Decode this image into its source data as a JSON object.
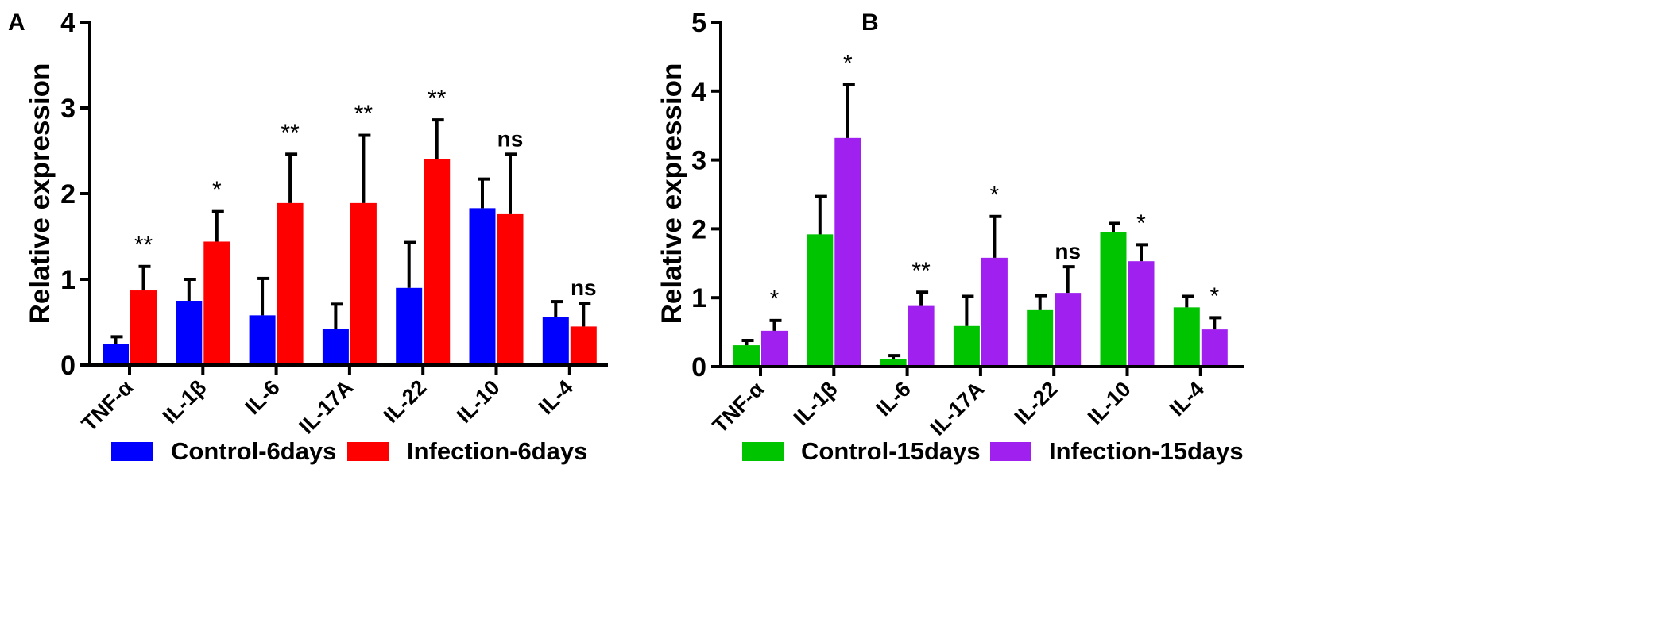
{
  "chart_data": [
    {
      "panel": "A",
      "type": "bar",
      "ylabel": "Relative expression",
      "ylim": [
        0,
        4
      ],
      "yticks": [
        "0",
        "1",
        "2",
        "3",
        "4"
      ],
      "categories": [
        "TNF-α",
        "IL-1β",
        "IL-6",
        "IL-17A",
        "IL-22",
        "IL-10",
        "IL-4"
      ],
      "series": [
        {
          "name": "Control-6days",
          "color": "#0000FF",
          "values": [
            0.25,
            0.75,
            0.58,
            0.42,
            0.9,
            1.83,
            0.56
          ],
          "errors": [
            0.08,
            0.25,
            0.43,
            0.29,
            0.53,
            0.34,
            0.18
          ]
        },
        {
          "name": "Infection-6days",
          "color": "#FF0000",
          "values": [
            0.87,
            1.44,
            1.89,
            1.89,
            2.4,
            1.76,
            0.45
          ],
          "errors": [
            0.28,
            0.35,
            0.57,
            0.79,
            0.46,
            0.7,
            0.27
          ]
        }
      ],
      "significance": [
        "**",
        "*",
        "**",
        "**",
        "**",
        "ns",
        "ns"
      ]
    },
    {
      "panel": "B",
      "type": "bar",
      "ylabel": "Relative expression",
      "ylim": [
        0,
        5
      ],
      "yticks": [
        "0",
        "1",
        "2",
        "3",
        "4",
        "5"
      ],
      "categories": [
        "TNF-α",
        "IL-1β",
        "IL-6",
        "IL-17A",
        "IL-22",
        "IL-10",
        "IL-4"
      ],
      "series": [
        {
          "name": "Control-15days",
          "color": "#00C400",
          "values": [
            0.31,
            1.92,
            0.11,
            0.59,
            0.82,
            1.95,
            0.86
          ],
          "errors": [
            0.07,
            0.55,
            0.05,
            0.43,
            0.21,
            0.13,
            0.16
          ]
        },
        {
          "name": "Infection-15days",
          "color": "#A020F0",
          "values": [
            0.52,
            3.32,
            0.88,
            1.58,
            1.07,
            1.53,
            0.54
          ],
          "errors": [
            0.15,
            0.77,
            0.2,
            0.6,
            0.38,
            0.24,
            0.17
          ]
        }
      ],
      "significance": [
        "*",
        "*",
        "**",
        "*",
        "ns",
        "*",
        "*"
      ]
    }
  ]
}
